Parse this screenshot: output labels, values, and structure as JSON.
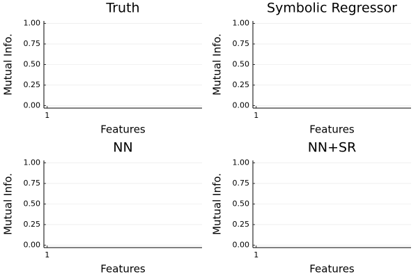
{
  "chart_data": [
    {
      "type": "bar",
      "title": "Truth",
      "xlabel": "Features",
      "ylabel": "Mutual Info.",
      "xlim": [
        0.7,
        15
      ],
      "xticks": [
        1
      ],
      "ylim": [
        -0.03,
        1.03
      ],
      "yticks": [
        {
          "value": 0,
          "label": "0.00"
        },
        {
          "value": 0.25,
          "label": "0.25"
        },
        {
          "value": 0.5,
          "label": "0.50"
        },
        {
          "value": 0.75,
          "label": "0.75"
        },
        {
          "value": 1,
          "label": "1.00"
        }
      ],
      "grid": true
    },
    {
      "type": "bar",
      "title": "Symbolic Regressor",
      "xlabel": "Features",
      "ylabel": "Mutual Info.",
      "xlim": [
        0.7,
        15
      ],
      "xticks": [
        1
      ],
      "ylim": [
        -0.03,
        1.03
      ],
      "yticks": [
        {
          "value": 0,
          "label": "0.00"
        },
        {
          "value": 0.25,
          "label": "0.25"
        },
        {
          "value": 0.5,
          "label": "0.50"
        },
        {
          "value": 0.75,
          "label": "0.75"
        },
        {
          "value": 1,
          "label": "1.00"
        }
      ],
      "grid": true
    },
    {
      "type": "bar",
      "title": "NN",
      "xlabel": "Features",
      "ylabel": "Mutual Info.",
      "xlim": [
        0.7,
        15
      ],
      "xticks": [
        1
      ],
      "ylim": [
        -0.03,
        1.03
      ],
      "yticks": [
        {
          "value": 0,
          "label": "0.00"
        },
        {
          "value": 0.25,
          "label": "0.25"
        },
        {
          "value": 0.5,
          "label": "0.50"
        },
        {
          "value": 0.75,
          "label": "0.75"
        },
        {
          "value": 1,
          "label": "1.00"
        }
      ],
      "grid": true
    },
    {
      "type": "bar",
      "title": "NN+SR",
      "xlabel": "Features",
      "ylabel": "Mutual Info.",
      "xlim": [
        0.7,
        15
      ],
      "xticks": [
        1
      ],
      "ylim": [
        -0.03,
        1.03
      ],
      "yticks": [
        {
          "value": 0,
          "label": "0.00"
        },
        {
          "value": 0.25,
          "label": "0.25"
        },
        {
          "value": 0.5,
          "label": "0.50"
        },
        {
          "value": 0.75,
          "label": "0.75"
        },
        {
          "value": 1,
          "label": "1.00"
        }
      ],
      "grid": true
    }
  ]
}
